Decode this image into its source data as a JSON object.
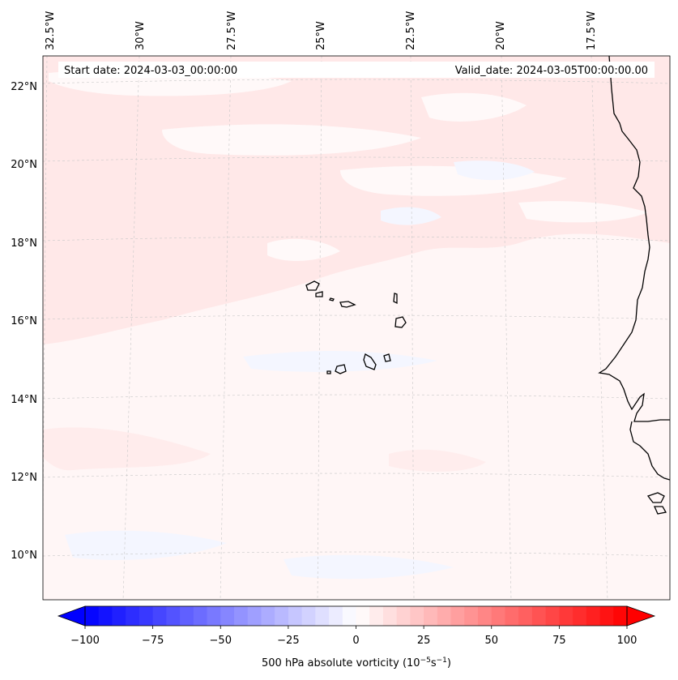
{
  "map": {
    "header": {
      "start_date": "Start date: 2024-03-03_00:00:00",
      "valid_date": "Valid_date: 2024-03-05T00:00:00.00"
    },
    "lon_labels": [
      "32.5°W",
      "30°W",
      "27.5°W",
      "25°W",
      "22.5°W",
      "20°W",
      "17.5°W"
    ],
    "lat_labels": [
      "22°N",
      "20°N",
      "18°N",
      "16°N",
      "14°N",
      "12°N",
      "10°N"
    ],
    "colorbar": {
      "label": "500 hPa absolute vorticity (10",
      "label_sup1": "−5",
      "label_mid": "s",
      "label_sup2": "−1",
      "label_end": ")",
      "ticks": [
        "−100",
        "−75",
        "−50",
        "−25",
        "0",
        "25",
        "50",
        "75",
        "100"
      ],
      "min": -100,
      "max": 100,
      "levels": 40,
      "color_low": "#0000ff",
      "color_mid": "#ffffff",
      "color_high": "#ff0000"
    },
    "colors": {
      "background_field": "#fff6f6",
      "pink_band": "#ffe8e8",
      "light_blue": "#f4f6ff",
      "coast": "#000000",
      "grid": "#c8c8c8"
    }
  }
}
